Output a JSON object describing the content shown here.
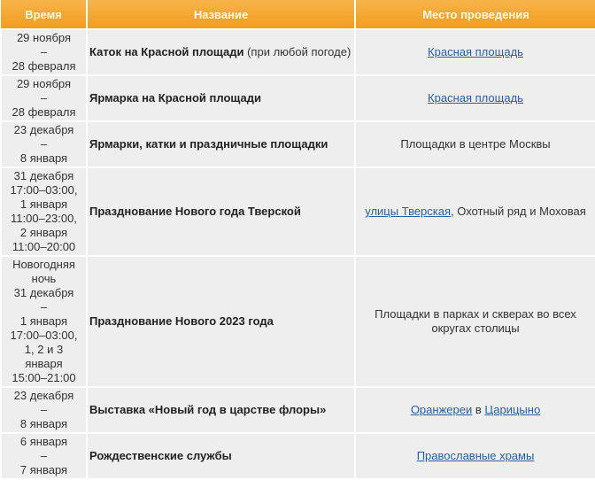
{
  "header": {
    "time": "Время",
    "title": "Название",
    "place": "Место проведения"
  },
  "colors": {
    "header_bg": "#f39c1f",
    "cell_bg": "#eeeeee",
    "link": "#2a5d9f"
  },
  "rows": [
    {
      "time": "29 ноября\n–\n28 февраля",
      "title_bold": "Каток на Красной площади",
      "title_rest": " (при любой погоде)",
      "place": [
        {
          "text": "Красная площадь",
          "link": true
        }
      ]
    },
    {
      "time": "29 ноября\n–\n28 февраля",
      "title_bold": "Ярмарка на Красной площади",
      "title_rest": "",
      "place": [
        {
          "text": "Красная площадь",
          "link": true
        }
      ]
    },
    {
      "time": "23 декабря\n–\n8 января",
      "title_bold": "Ярмарки, катки и праздничные площадки",
      "title_rest": "",
      "place": [
        {
          "text": "Площадки в центре Москвы",
          "link": false
        }
      ]
    },
    {
      "time": "31 декабря\n17:00–03:00,\n1 января\n11:00–23:00,\n2 января\n11:00–20:00",
      "title_bold": "Празднование Нового года Тверской",
      "title_rest": "",
      "place": [
        {
          "text": "улицы Тверская",
          "link": true
        },
        {
          "text": ", Охотный ряд и Моховая",
          "link": false
        }
      ]
    },
    {
      "time": "Новогодняя\nночь\n31 декабря\n–\n1 января\n17:00–03:00,\n1, 2 и 3\nянваря\n15:00–21:00",
      "title_bold": "Празднование Нового 2023 года",
      "title_rest": "",
      "place": [
        {
          "text": "Площадки в парках и скверах во всех округах столицы",
          "link": false
        }
      ]
    },
    {
      "time": "23 декабря\n–\n8 января",
      "title_bold": "Выставка «Новый год в царстве флоры»",
      "title_rest": "",
      "place": [
        {
          "text": "Оранжереи",
          "link": true
        },
        {
          "text": " в ",
          "link": false
        },
        {
          "text": "Царицыно",
          "link": true
        }
      ]
    },
    {
      "time": "6 января\n–\n7 января",
      "title_bold": "Рождественские службы",
      "title_rest": "",
      "place": [
        {
          "text": "Православные храмы",
          "link": true
        }
      ]
    }
  ]
}
